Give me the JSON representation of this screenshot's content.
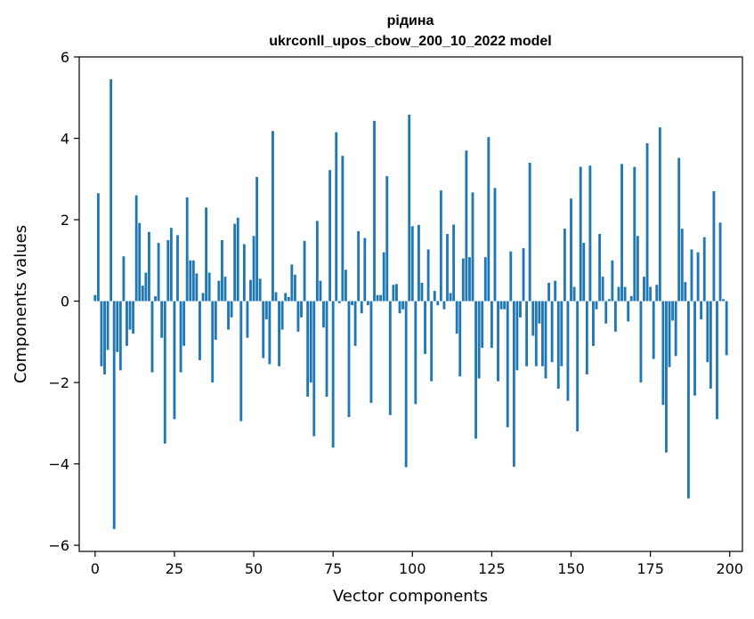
{
  "chart_data": {
    "type": "bar",
    "title": "рідина",
    "subtitle": "ukrconll_upos_cbow_200_10_2022 model",
    "xlabel": "Vector components",
    "ylabel": "Components values",
    "xlim": [
      -5,
      204
    ],
    "ylim": [
      -6.15,
      6.0
    ],
    "xticks": [
      0,
      25,
      50,
      75,
      100,
      125,
      150,
      175,
      200
    ],
    "yticks": [
      -6,
      -4,
      -2,
      0,
      2,
      4,
      6
    ],
    "grid": false,
    "bar_color": "#1f77b4",
    "x": [
      0,
      1,
      2,
      3,
      4,
      5,
      6,
      7,
      8,
      9,
      10,
      11,
      12,
      13,
      14,
      15,
      16,
      17,
      18,
      19,
      20,
      21,
      22,
      23,
      24,
      25,
      26,
      27,
      28,
      29,
      30,
      31,
      32,
      33,
      34,
      35,
      36,
      37,
      38,
      39,
      40,
      41,
      42,
      43,
      44,
      45,
      46,
      47,
      48,
      49,
      50,
      51,
      52,
      53,
      54,
      55,
      56,
      57,
      58,
      59,
      60,
      61,
      62,
      63,
      64,
      65,
      66,
      67,
      68,
      69,
      70,
      71,
      72,
      73,
      74,
      75,
      76,
      77,
      78,
      79,
      80,
      81,
      82,
      83,
      84,
      85,
      86,
      87,
      88,
      89,
      90,
      91,
      92,
      93,
      94,
      95,
      96,
      97,
      98,
      99,
      100,
      101,
      102,
      103,
      104,
      105,
      106,
      107,
      108,
      109,
      110,
      111,
      112,
      113,
      114,
      115,
      116,
      117,
      118,
      119,
      120,
      121,
      122,
      123,
      124,
      125,
      126,
      127,
      128,
      129,
      130,
      131,
      132,
      133,
      134,
      135,
      136,
      137,
      138,
      139,
      140,
      141,
      142,
      143,
      144,
      145,
      146,
      147,
      148,
      149,
      150,
      151,
      152,
      153,
      154,
      155,
      156,
      157,
      158,
      159,
      160,
      161,
      162,
      163,
      164,
      165,
      166,
      167,
      168,
      169,
      170,
      171,
      172,
      173,
      174,
      175,
      176,
      177,
      178,
      179,
      180,
      181,
      182,
      183,
      184,
      185,
      186,
      187,
      188,
      189,
      190,
      191,
      192,
      193,
      194,
      195,
      196,
      197,
      198,
      199
    ],
    "values": [
      0.15,
      2.65,
      -1.6,
      -1.8,
      -1.2,
      5.45,
      -5.6,
      -1.25,
      -1.7,
      1.1,
      -1.1,
      -0.7,
      -0.8,
      2.6,
      1.92,
      0.38,
      0.7,
      1.7,
      -1.75,
      0.12,
      1.43,
      -0.9,
      -3.5,
      1.5,
      1.8,
      -2.9,
      1.62,
      -1.75,
      -1.1,
      2.55,
      1.0,
      1.0,
      0.68,
      -1.45,
      0.2,
      2.3,
      0.7,
      -2.0,
      -0.95,
      0.5,
      1.5,
      0.6,
      -0.7,
      -0.4,
      1.9,
      2.05,
      -2.95,
      1.4,
      -0.9,
      0.52,
      1.6,
      3.05,
      0.55,
      -1.4,
      -0.45,
      -1.55,
      4.18,
      0.22,
      -1.6,
      -0.7,
      0.2,
      0.1,
      0.9,
      0.65,
      -0.75,
      -0.4,
      1.48,
      -2.35,
      -2.0,
      -3.32,
      1.97,
      0.5,
      -0.65,
      -2.35,
      3.22,
      -3.6,
      4.15,
      -0.05,
      3.57,
      0.77,
      -2.85,
      -0.1,
      -1.1,
      1.72,
      -0.3,
      1.55,
      -0.1,
      -2.5,
      4.43,
      0.15,
      0.15,
      1.2,
      3.07,
      -2.8,
      0.4,
      0.42,
      -0.3,
      -0.2,
      -4.08,
      4.58,
      1.84,
      -2.53,
      1.87,
      0.45,
      -1.3,
      1.27,
      -1.97,
      0.25,
      -0.1,
      2.72,
      -0.2,
      1.65,
      0.2,
      1.88,
      -0.8,
      -1.85,
      1.05,
      3.7,
      1.08,
      2.67,
      -3.38,
      -1.9,
      -1.15,
      1.08,
      4.03,
      -1.15,
      2.78,
      -1.97,
      -0.2,
      -0.2,
      -3.1,
      1.22,
      -4.07,
      -1.7,
      -0.4,
      1.3,
      -1.6,
      3.4,
      -0.85,
      -1.6,
      -0.55,
      -1.6,
      -1.9,
      0.45,
      -1.5,
      0.5,
      -2.15,
      -1.6,
      1.78,
      -2.45,
      2.52,
      0.35,
      -3.2,
      3.3,
      1.43,
      -1.8,
      3.33,
      -1.1,
      -0.2,
      1.65,
      0.6,
      -0.55,
      0.05,
      1.0,
      -0.75,
      0.35,
      3.37,
      0.35,
      -0.5,
      0.12,
      3.3,
      1.6,
      -2.0,
      0.6,
      3.88,
      0.35,
      -1.42,
      0.4,
      4.27,
      -2.55,
      -3.72,
      -1.62,
      -0.48,
      -1.35,
      3.52,
      1.78,
      0.47,
      -4.85,
      1.27,
      -2.32,
      1.2,
      -0.45,
      1.57,
      -1.5,
      -2.15,
      2.7,
      -2.9,
      1.93,
      0.05,
      -1.33
    ]
  }
}
